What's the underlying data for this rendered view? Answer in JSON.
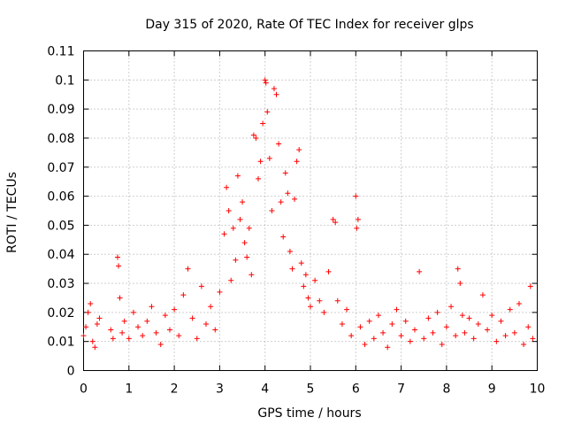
{
  "chart_data": {
    "type": "scatter",
    "title": "Day 315 of 2020, Rate Of TEC Index for receiver glps",
    "xlabel": "GPS time / hours",
    "ylabel": "ROTI / TECUs",
    "xlim": [
      0,
      10
    ],
    "ylim": [
      0,
      0.11
    ],
    "xticks": [
      "0",
      "1",
      "2",
      "3",
      "4",
      "5",
      "6",
      "7",
      "8",
      "9",
      "10"
    ],
    "yticks": [
      "0",
      "0.01",
      "0.02",
      "0.03",
      "0.04",
      "0.05",
      "0.06",
      "0.07",
      "0.08",
      "0.09",
      "0.1",
      "0.11"
    ],
    "grid": true,
    "marker": "+",
    "color": "#ff0000",
    "series": [
      {
        "name": "ROTI",
        "points": [
          [
            0.0,
            0.012
          ],
          [
            0.05,
            0.015
          ],
          [
            0.1,
            0.02
          ],
          [
            0.15,
            0.023
          ],
          [
            0.2,
            0.01
          ],
          [
            0.25,
            0.008
          ],
          [
            0.3,
            0.016
          ],
          [
            0.35,
            0.018
          ],
          [
            0.6,
            0.014
          ],
          [
            0.65,
            0.011
          ],
          [
            0.75,
            0.039
          ],
          [
            0.77,
            0.036
          ],
          [
            0.8,
            0.025
          ],
          [
            0.85,
            0.013
          ],
          [
            0.9,
            0.017
          ],
          [
            1.0,
            0.011
          ],
          [
            1.1,
            0.02
          ],
          [
            1.2,
            0.015
          ],
          [
            1.3,
            0.012
          ],
          [
            1.4,
            0.017
          ],
          [
            1.5,
            0.022
          ],
          [
            1.6,
            0.013
          ],
          [
            1.7,
            0.009
          ],
          [
            1.8,
            0.019
          ],
          [
            1.9,
            0.014
          ],
          [
            2.0,
            0.021
          ],
          [
            2.1,
            0.012
          ],
          [
            2.2,
            0.026
          ],
          [
            2.3,
            0.035
          ],
          [
            2.4,
            0.018
          ],
          [
            2.5,
            0.011
          ],
          [
            2.6,
            0.029
          ],
          [
            2.7,
            0.016
          ],
          [
            2.8,
            0.022
          ],
          [
            2.9,
            0.014
          ],
          [
            3.0,
            0.027
          ],
          [
            3.1,
            0.047
          ],
          [
            3.15,
            0.063
          ],
          [
            3.2,
            0.055
          ],
          [
            3.25,
            0.031
          ],
          [
            3.3,
            0.049
          ],
          [
            3.35,
            0.038
          ],
          [
            3.4,
            0.067
          ],
          [
            3.45,
            0.052
          ],
          [
            3.5,
            0.058
          ],
          [
            3.55,
            0.044
          ],
          [
            3.6,
            0.039
          ],
          [
            3.65,
            0.049
          ],
          [
            3.7,
            0.033
          ],
          [
            3.75,
            0.081
          ],
          [
            3.8,
            0.08
          ],
          [
            3.85,
            0.066
          ],
          [
            3.9,
            0.072
          ],
          [
            3.95,
            0.085
          ],
          [
            4.0,
            0.1
          ],
          [
            4.02,
            0.099
          ],
          [
            4.05,
            0.089
          ],
          [
            4.1,
            0.073
          ],
          [
            4.15,
            0.055
          ],
          [
            4.2,
            0.097
          ],
          [
            4.25,
            0.095
          ],
          [
            4.3,
            0.078
          ],
          [
            4.35,
            0.058
          ],
          [
            4.4,
            0.046
          ],
          [
            4.45,
            0.068
          ],
          [
            4.5,
            0.061
          ],
          [
            4.55,
            0.041
          ],
          [
            4.6,
            0.035
          ],
          [
            4.65,
            0.059
          ],
          [
            4.7,
            0.072
          ],
          [
            4.75,
            0.076
          ],
          [
            4.8,
            0.037
          ],
          [
            4.85,
            0.029
          ],
          [
            4.9,
            0.033
          ],
          [
            4.95,
            0.025
          ],
          [
            5.0,
            0.022
          ],
          [
            5.1,
            0.031
          ],
          [
            5.2,
            0.024
          ],
          [
            5.3,
            0.02
          ],
          [
            5.4,
            0.034
          ],
          [
            5.5,
            0.052
          ],
          [
            5.55,
            0.051
          ],
          [
            5.6,
            0.024
          ],
          [
            5.7,
            0.016
          ],
          [
            5.8,
            0.021
          ],
          [
            5.9,
            0.012
          ],
          [
            6.0,
            0.06
          ],
          [
            6.02,
            0.049
          ],
          [
            6.05,
            0.052
          ],
          [
            6.1,
            0.015
          ],
          [
            6.2,
            0.009
          ],
          [
            6.3,
            0.017
          ],
          [
            6.4,
            0.011
          ],
          [
            6.5,
            0.019
          ],
          [
            6.6,
            0.013
          ],
          [
            6.7,
            0.008
          ],
          [
            6.8,
            0.016
          ],
          [
            6.9,
            0.021
          ],
          [
            7.0,
            0.012
          ],
          [
            7.1,
            0.017
          ],
          [
            7.2,
            0.01
          ],
          [
            7.3,
            0.014
          ],
          [
            7.4,
            0.034
          ],
          [
            7.5,
            0.011
          ],
          [
            7.6,
            0.018
          ],
          [
            7.7,
            0.013
          ],
          [
            7.8,
            0.02
          ],
          [
            7.9,
            0.009
          ],
          [
            8.0,
            0.015
          ],
          [
            8.1,
            0.022
          ],
          [
            8.2,
            0.012
          ],
          [
            8.25,
            0.035
          ],
          [
            8.3,
            0.03
          ],
          [
            8.35,
            0.019
          ],
          [
            8.4,
            0.013
          ],
          [
            8.5,
            0.018
          ],
          [
            8.6,
            0.011
          ],
          [
            8.7,
            0.016
          ],
          [
            8.8,
            0.026
          ],
          [
            8.9,
            0.014
          ],
          [
            9.0,
            0.019
          ],
          [
            9.1,
            0.01
          ],
          [
            9.2,
            0.017
          ],
          [
            9.3,
            0.012
          ],
          [
            9.4,
            0.021
          ],
          [
            9.5,
            0.013
          ],
          [
            9.6,
            0.023
          ],
          [
            9.7,
            0.009
          ],
          [
            9.8,
            0.015
          ],
          [
            9.85,
            0.029
          ],
          [
            9.9,
            0.011
          ]
        ]
      }
    ]
  }
}
